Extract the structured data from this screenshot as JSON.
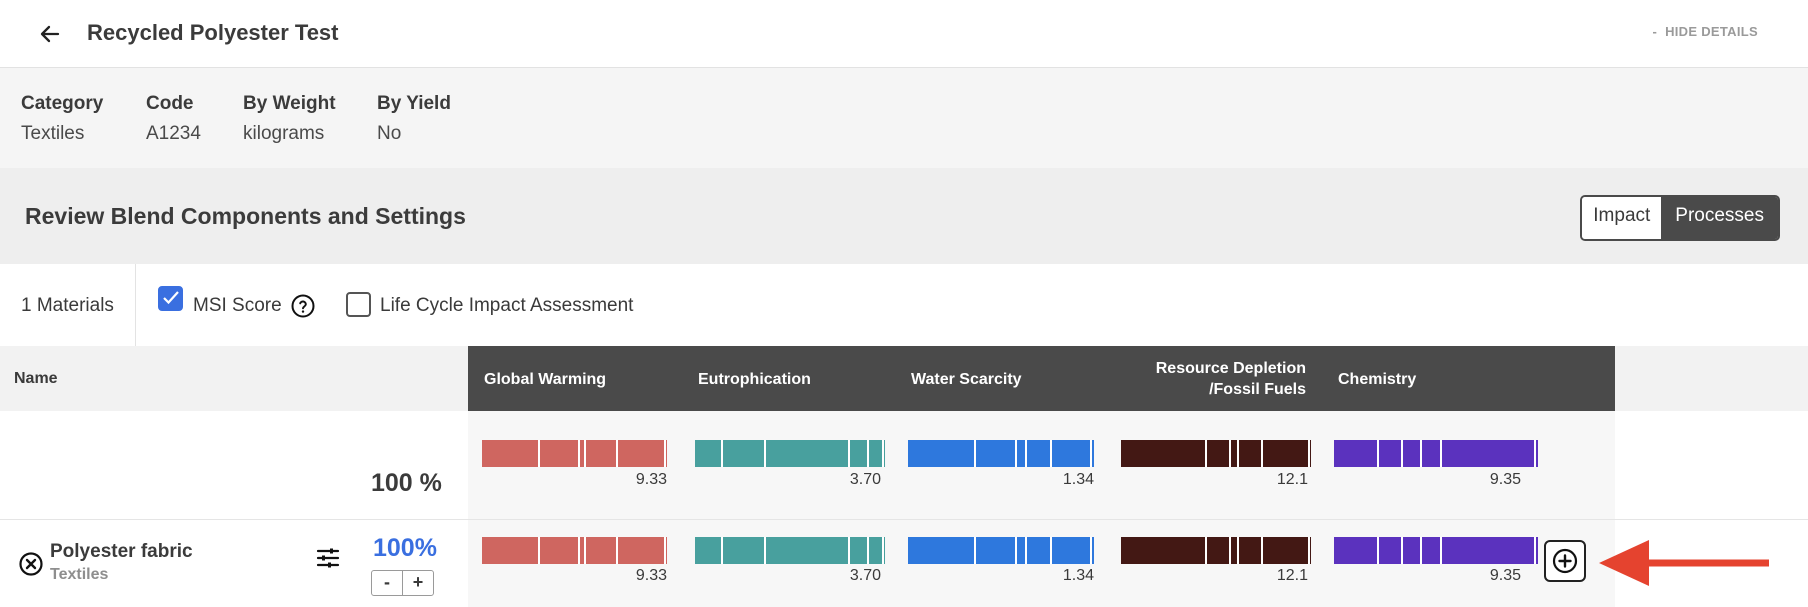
{
  "header": {
    "title": "Recycled Polyester Test",
    "hide_details_label": "HIDE DETAILS",
    "hide_details_prefix": "-"
  },
  "meta": [
    {
      "label": "Category",
      "value": "Textiles"
    },
    {
      "label": "Code",
      "value": "A1234"
    },
    {
      "label": "By Weight",
      "value": "kilograms"
    },
    {
      "label": "By Yield",
      "value": "No"
    }
  ],
  "review": {
    "title": "Review Blend Components and Settings",
    "toggle": {
      "active": "Impact",
      "inactive": "Processes"
    }
  },
  "filters": {
    "materials_count": "1 Materials",
    "msi_label": "MSI Score",
    "msi_checked": true,
    "lcia_label": "Life Cycle Impact Assessment",
    "lcia_checked": false
  },
  "table": {
    "name_header": "Name",
    "columns": [
      {
        "line1": "Global Warming",
        "line2": "",
        "color": "#cf6660"
      },
      {
        "line1": "Eutrophication",
        "line2": "",
        "color": "#48a09e"
      },
      {
        "line1": "Water Scarcity",
        "line2": "",
        "color": "#2e78dd"
      },
      {
        "line1": "Resource Depletion",
        "line2": "/Fossil Fuels",
        "color": "#431814"
      },
      {
        "line1": "Chemistry",
        "line2": "",
        "color": "#5b32be"
      }
    ],
    "total_row": {
      "percent": "100 %",
      "values": [
        "9.33",
        "3.70",
        "1.34",
        "12.1",
        "9.35"
      ]
    },
    "items": [
      {
        "name": "Polyester fabric",
        "category": "Textiles",
        "percent": "100%",
        "values": [
          "9.33",
          "3.70",
          "1.34",
          "12.1",
          "9.35"
        ],
        "stepper_minus": "-",
        "stepper_plus": "+"
      }
    ]
  },
  "icons": {
    "back": "arrow-left-icon",
    "help": "help-circle-icon",
    "remove": "close-circle-icon",
    "settings": "sliders-icon",
    "add": "plus-circle-icon",
    "annotation": "red-arrow-icon"
  }
}
